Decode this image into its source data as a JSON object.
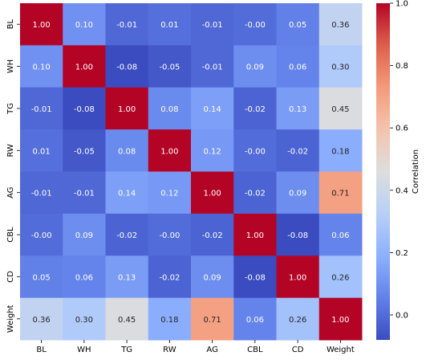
{
  "chart_data": {
    "type": "heatmap",
    "title": "",
    "x_labels": [
      "BL",
      "WH",
      "TG",
      "RW",
      "AG",
      "CBL",
      "CD",
      "Weight"
    ],
    "y_labels": [
      "BL",
      "WH",
      "TG",
      "RW",
      "AG",
      "CBL",
      "CD",
      "Weight"
    ],
    "values": [
      [
        1.0,
        0.1,
        -0.01,
        0.01,
        -0.01,
        -0.0,
        0.05,
        0.36
      ],
      [
        0.1,
        1.0,
        -0.08,
        -0.05,
        -0.01,
        0.09,
        0.06,
        0.3
      ],
      [
        -0.01,
        -0.08,
        1.0,
        0.08,
        0.14,
        -0.02,
        0.13,
        0.45
      ],
      [
        0.01,
        -0.05,
        0.08,
        1.0,
        0.12,
        -0.0,
        -0.02,
        0.18
      ],
      [
        -0.01,
        -0.01,
        0.14,
        0.12,
        1.0,
        -0.02,
        0.09,
        0.71
      ],
      [
        -0.0,
        0.09,
        -0.02,
        -0.0,
        -0.02,
        1.0,
        -0.08,
        0.06
      ],
      [
        0.05,
        0.06,
        0.13,
        -0.02,
        0.09,
        -0.08,
        1.0,
        0.26
      ],
      [
        0.36,
        0.3,
        0.45,
        0.18,
        0.71,
        0.06,
        0.26,
        1.0
      ]
    ],
    "annotations": [
      [
        "1.00",
        "0.10",
        "-0.01",
        "0.01",
        "-0.01",
        "-0.00",
        "0.05",
        "0.36"
      ],
      [
        "0.10",
        "1.00",
        "-0.08",
        "-0.05",
        "-0.01",
        "0.09",
        "0.06",
        "0.30"
      ],
      [
        "-0.01",
        "-0.08",
        "1.00",
        "0.08",
        "0.14",
        "-0.02",
        "0.13",
        "0.45"
      ],
      [
        "0.01",
        "-0.05",
        "0.08",
        "1.00",
        "0.12",
        "-0.00",
        "-0.02",
        "0.18"
      ],
      [
        "-0.01",
        "-0.01",
        "0.14",
        "0.12",
        "1.00",
        "-0.02",
        "0.09",
        "0.71"
      ],
      [
        "-0.00",
        "0.09",
        "-0.02",
        "-0.00",
        "-0.02",
        "1.00",
        "-0.08",
        "0.06"
      ],
      [
        "0.05",
        "0.06",
        "0.13",
        "-0.02",
        "0.09",
        "-0.08",
        "1.00",
        "0.26"
      ],
      [
        "0.36",
        "0.30",
        "0.45",
        "0.18",
        "0.71",
        "0.06",
        "0.26",
        "1.00"
      ]
    ],
    "colormap": "coolwarm",
    "vmin": -0.08,
    "vmax": 1.0,
    "colorbar": {
      "label": "Correlation",
      "ticks": [
        0.0,
        0.2,
        0.4,
        0.6,
        0.8,
        1.0
      ],
      "tick_labels": [
        "0.0",
        "0.2",
        "0.4",
        "0.6",
        "0.8",
        "1.0"
      ]
    },
    "colors": {
      "low": "#3b4cc0",
      "mid": "#dddddd",
      "high": "#b40426"
    }
  }
}
